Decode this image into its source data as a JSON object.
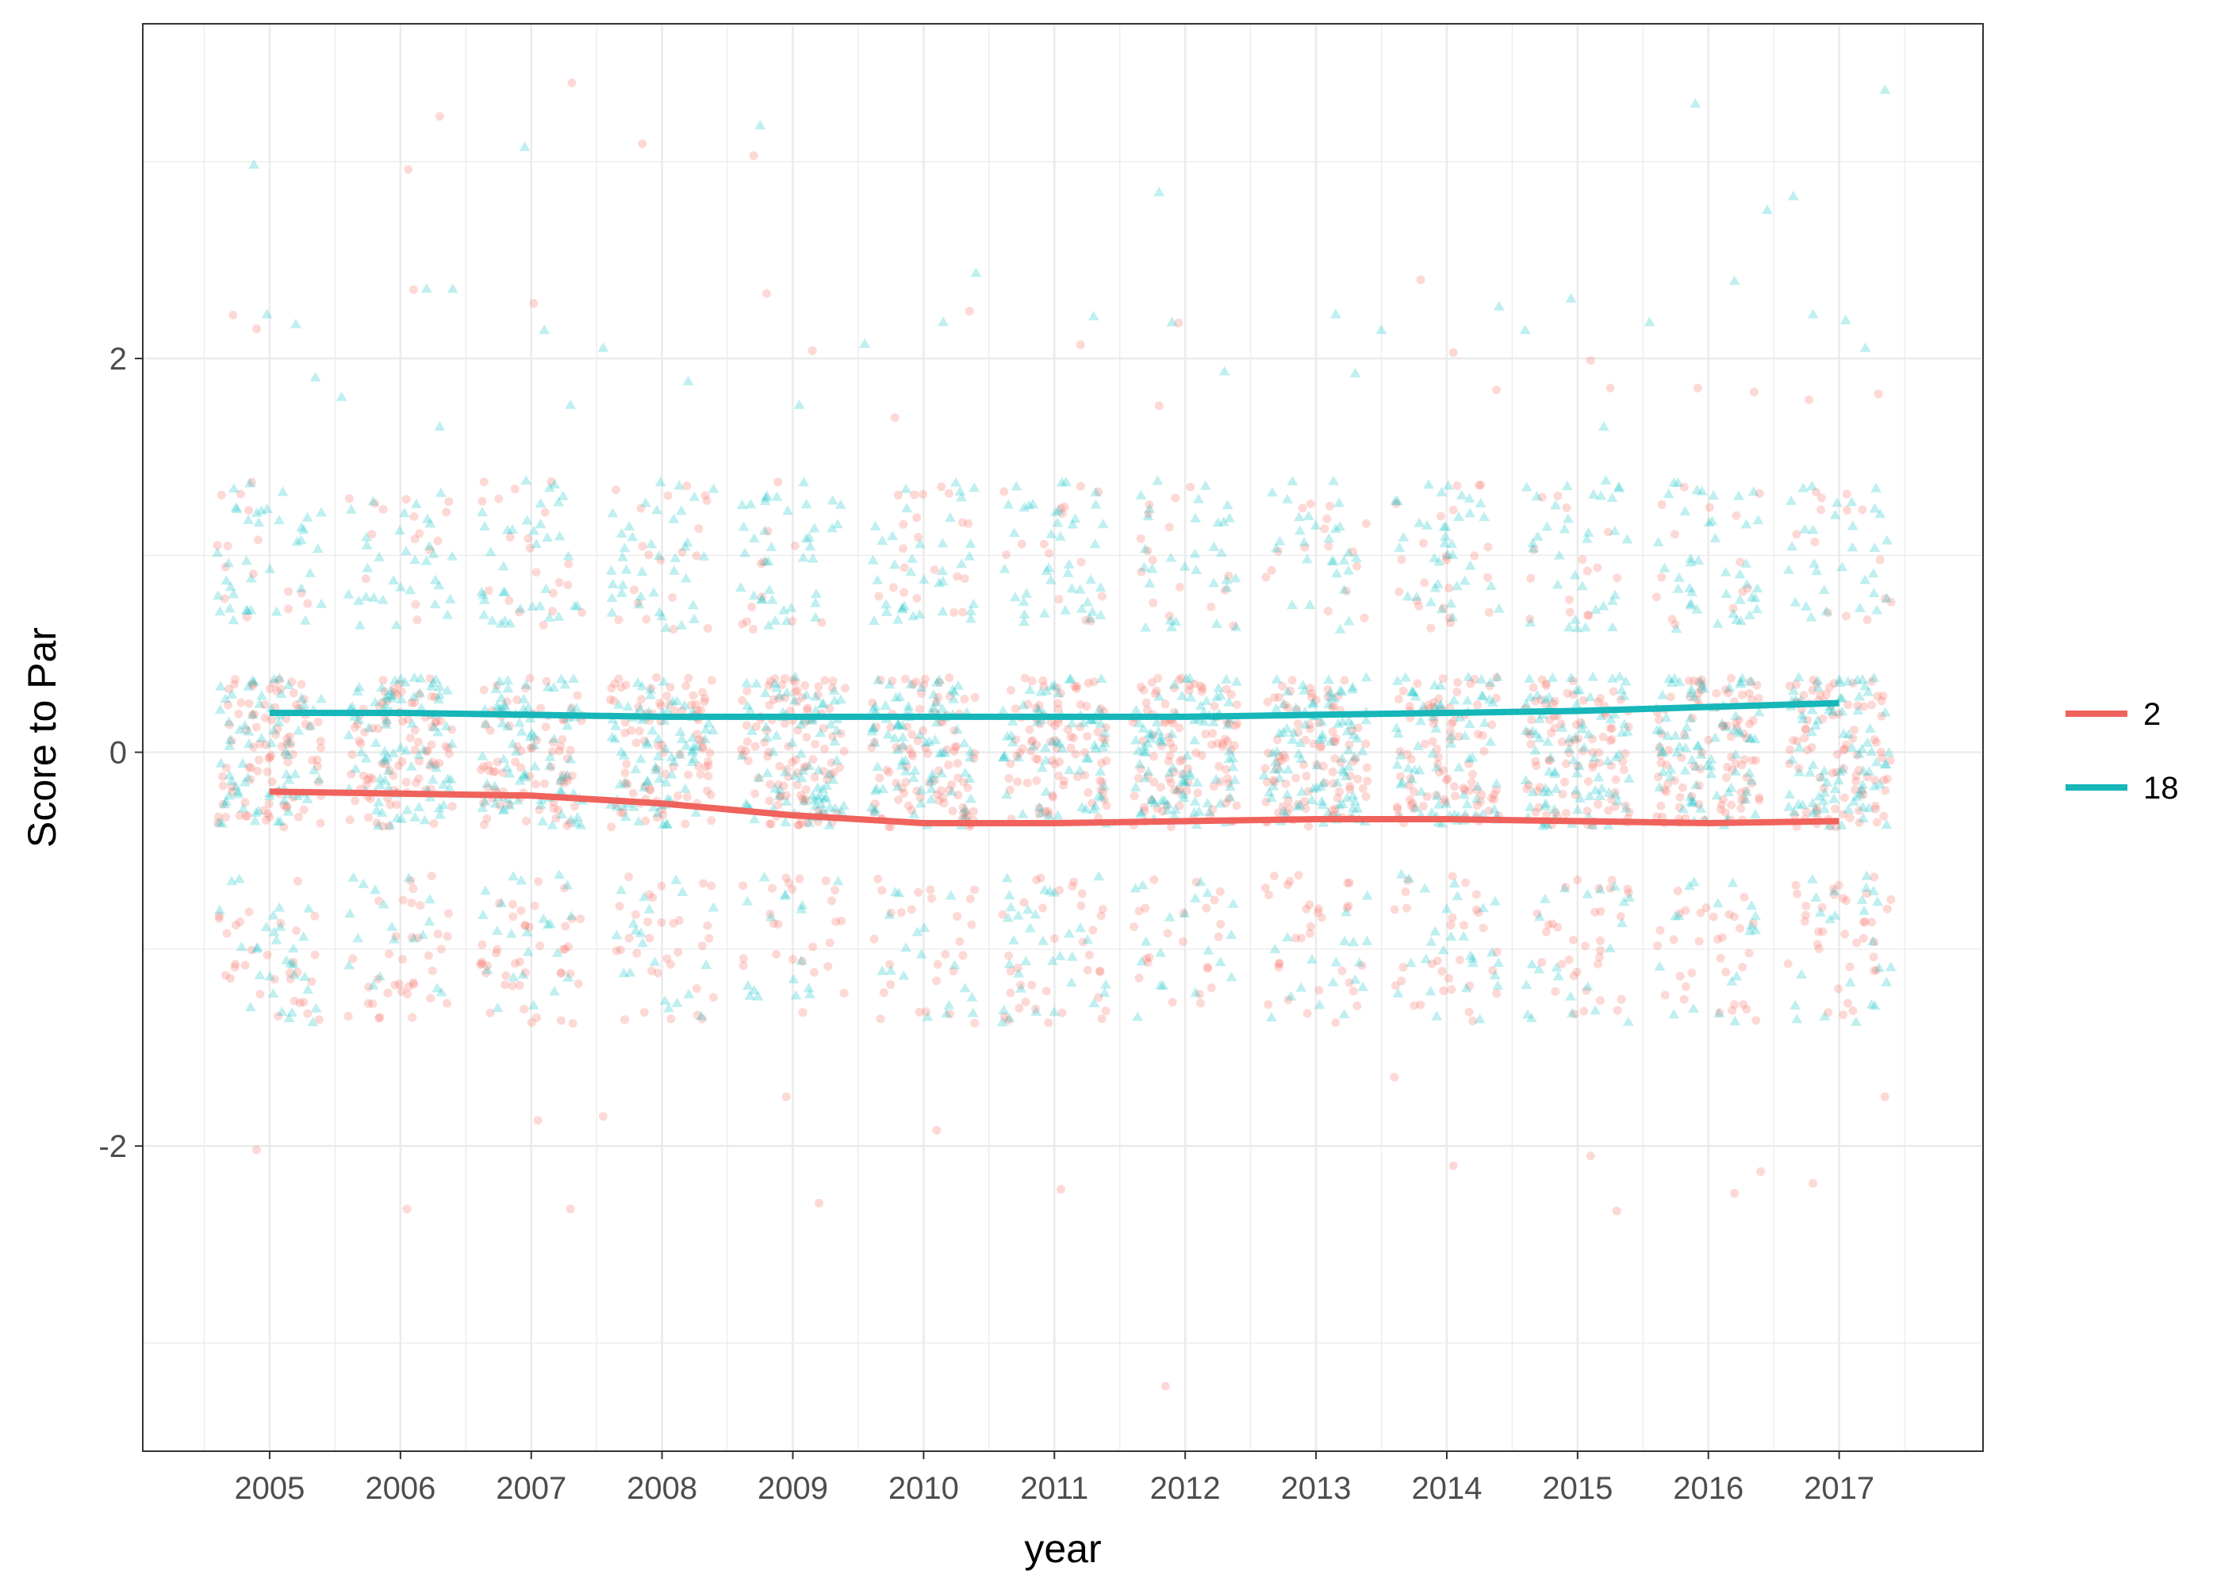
{
  "chart_data": {
    "type": "scatter",
    "title": "",
    "xlabel": "year",
    "ylabel": "Score to Par",
    "x_ticks": [
      "2005",
      "2006",
      "2007",
      "2008",
      "2009",
      "2010",
      "2011",
      "2012",
      "2013",
      "2014",
      "2015",
      "2016",
      "2017"
    ],
    "y_ticks": [
      "2",
      "0",
      "-2"
    ],
    "y_tick_values": [
      2,
      0,
      -2
    ],
    "xlim": [
      2004.03,
      2018.1
    ],
    "ylim": [
      -3.55,
      3.7
    ],
    "grid": true,
    "legend_position": "right",
    "series": [
      {
        "name": "2",
        "marker": "circle",
        "color": "#F8766D",
        "point_opacity": 0.28,
        "score_values": [
          -1,
          0,
          1
        ],
        "score_shares": [
          0.22,
          0.66,
          0.12
        ],
        "trend": {
          "x": [
            2005,
            2006,
            2007,
            2008,
            2009,
            2010,
            2011,
            2012,
            2013,
            2014,
            2015,
            2016,
            2017
          ],
          "y": [
            -0.2,
            -0.21,
            -0.22,
            -0.26,
            -0.32,
            -0.36,
            -0.36,
            -0.35,
            -0.34,
            -0.34,
            -0.35,
            -0.36,
            -0.35
          ]
        },
        "outliers": {
          "x": [
            2004.72,
            2004.9,
            2006.06,
            2006.3,
            2006.1,
            2007.31,
            2007.02,
            2007.85,
            2008.8,
            2008.7,
            2009.15,
            2009.78,
            2010.35,
            2011.2,
            2011.95,
            2011.8,
            2013.8,
            2014.05,
            2014.38,
            2015.1,
            2015.25,
            2015.92,
            2016.35,
            2016.77,
            2017.3,
            2004.9,
            2006.05,
            2007.3,
            2007.05,
            2007.55,
            2008.95,
            2009.2,
            2010.1,
            2011.05,
            2011.85,
            2013.6,
            2014.05,
            2015.1,
            2015.3,
            2016.2,
            2016.4,
            2016.8,
            2017.35
          ],
          "y": [
            2.22,
            2.15,
            2.96,
            3.23,
            2.35,
            3.4,
            2.28,
            3.09,
            2.33,
            3.03,
            2.04,
            1.7,
            2.24,
            2.07,
            2.18,
            1.76,
            2.4,
            2.03,
            1.84,
            1.99,
            1.85,
            1.85,
            1.83,
            1.79,
            1.82,
            -2.02,
            -2.32,
            -2.32,
            -1.87,
            -1.85,
            -1.75,
            -2.29,
            -1.92,
            -2.22,
            -3.22,
            -1.65,
            -2.1,
            -2.05,
            -2.33,
            -2.24,
            -2.13,
            -2.19,
            -1.75
          ]
        }
      },
      {
        "name": "18",
        "marker": "triangle",
        "color": "#00BFC4",
        "point_opacity": 0.25,
        "score_values": [
          -1,
          0,
          1
        ],
        "score_shares": [
          0.16,
          0.56,
          0.28
        ],
        "trend": {
          "x": [
            2005,
            2006,
            2007,
            2008,
            2009,
            2010,
            2011,
            2012,
            2013,
            2014,
            2015,
            2016,
            2017
          ],
          "y": [
            0.2,
            0.2,
            0.19,
            0.18,
            0.18,
            0.18,
            0.18,
            0.18,
            0.19,
            0.2,
            0.21,
            0.23,
            0.25
          ]
        },
        "outliers": {
          "x": [
            2004.88,
            2004.98,
            2005.2,
            2005.35,
            2006.2,
            2006.95,
            2007.1,
            2007.3,
            2007.55,
            2008.2,
            2008.75,
            2009.05,
            2009.55,
            2010.15,
            2010.4,
            2011.3,
            2011.8,
            2011.9,
            2012.3,
            2013.15,
            2013.3,
            2013.5,
            2014.4,
            2014.6,
            2014.95,
            2015.2,
            2015.55,
            2015.9,
            2016.2,
            2016.45,
            2016.65,
            2016.8,
            2017.05,
            2017.2,
            2017.35,
            2005.55,
            2006.4,
            2006.3
          ],
          "y": [
            2.98,
            2.22,
            2.17,
            1.9,
            2.35,
            3.07,
            2.14,
            1.76,
            2.05,
            1.88,
            3.18,
            1.76,
            2.07,
            2.18,
            2.43,
            2.21,
            2.84,
            2.18,
            1.93,
            2.22,
            1.92,
            2.14,
            2.26,
            2.14,
            2.3,
            1.65,
            2.18,
            3.29,
            2.39,
            2.75,
            2.82,
            2.22,
            2.19,
            2.05,
            3.36,
            1.8,
            2.35,
            1.65
          ]
        }
      }
    ]
  }
}
